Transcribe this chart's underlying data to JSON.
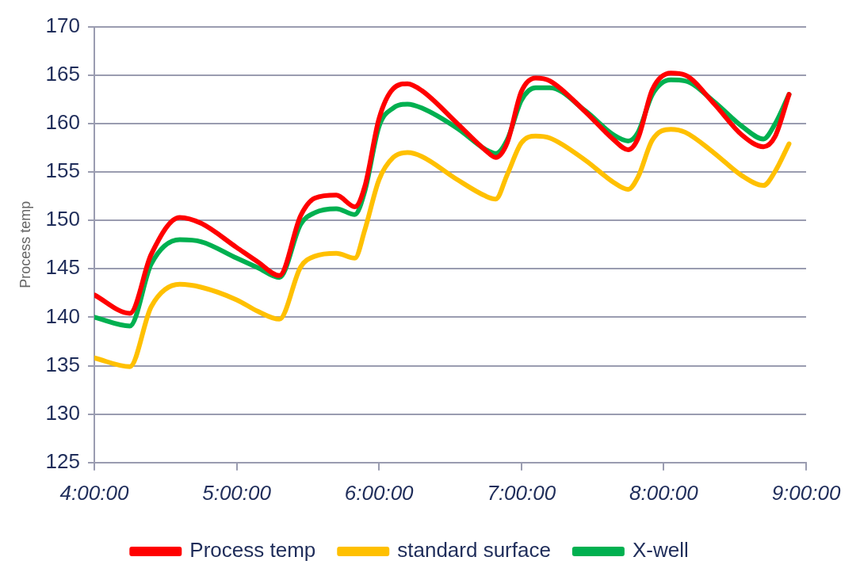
{
  "chart_data": {
    "type": "line",
    "ylabel": "Process temp",
    "x": [
      4.0,
      4.25,
      4.4,
      4.6,
      4.75,
      5.0,
      5.15,
      5.3,
      5.45,
      5.55,
      5.7,
      5.83,
      5.9,
      6.0,
      6.1,
      6.2,
      6.3,
      6.55,
      6.75,
      6.82,
      6.9,
      7.0,
      7.1,
      7.2,
      7.45,
      7.65,
      7.75,
      7.82,
      7.92,
      8.05,
      8.15,
      8.35,
      8.55,
      8.7,
      8.78,
      8.88
    ],
    "xlim": [
      4,
      9
    ],
    "xticks": [
      {
        "value": 4,
        "label": "4:00:00"
      },
      {
        "value": 5,
        "label": "5:00:00"
      },
      {
        "value": 6,
        "label": "6:00:00"
      },
      {
        "value": 7,
        "label": "7:00:00"
      },
      {
        "value": 8,
        "label": "8:00:00"
      },
      {
        "value": 9,
        "label": "9:00:00"
      }
    ],
    "ylim": [
      125,
      170
    ],
    "yticks": [
      125,
      130,
      135,
      140,
      145,
      150,
      155,
      160,
      165,
      170
    ],
    "grid": "y",
    "legend": "bottom",
    "series": [
      {
        "name": "Process temp",
        "color": "#ff0000",
        "values": [
          142.3,
          140.4,
          146.5,
          150.3,
          149.7,
          147.2,
          145.7,
          144.3,
          150.5,
          152.3,
          152.6,
          151.4,
          153.5,
          160.5,
          163.6,
          164.1,
          163.4,
          160.0,
          157.2,
          156.5,
          158.0,
          163.3,
          164.7,
          164.4,
          161.2,
          158.3,
          157.3,
          158.5,
          163.5,
          165.2,
          165.0,
          162.1,
          158.8,
          157.6,
          158.6,
          163.0
        ]
      },
      {
        "name": "standard surface",
        "color": "#ffc000",
        "values": [
          135.8,
          134.9,
          141.1,
          143.4,
          143.1,
          141.8,
          140.6,
          139.8,
          145.2,
          146.3,
          146.6,
          146.1,
          149.0,
          154.2,
          156.5,
          157.0,
          156.6,
          154.2,
          152.5,
          152.2,
          154.7,
          158.0,
          158.7,
          158.5,
          156.2,
          153.9,
          153.2,
          154.5,
          158.3,
          159.4,
          159.1,
          157.0,
          154.6,
          153.6,
          155.0,
          157.9
        ]
      },
      {
        "name": "X-well",
        "color": "#00b050",
        "values": [
          140.0,
          139.1,
          145.5,
          148.0,
          147.8,
          146.1,
          145.1,
          144.1,
          149.6,
          150.8,
          151.2,
          150.6,
          153.0,
          159.7,
          161.6,
          162.0,
          161.6,
          159.5,
          157.3,
          156.9,
          158.3,
          162.4,
          163.7,
          163.7,
          161.3,
          158.8,
          158.2,
          159.1,
          163.0,
          164.5,
          164.4,
          162.3,
          159.7,
          158.4,
          159.9,
          163.0
        ]
      }
    ]
  }
}
